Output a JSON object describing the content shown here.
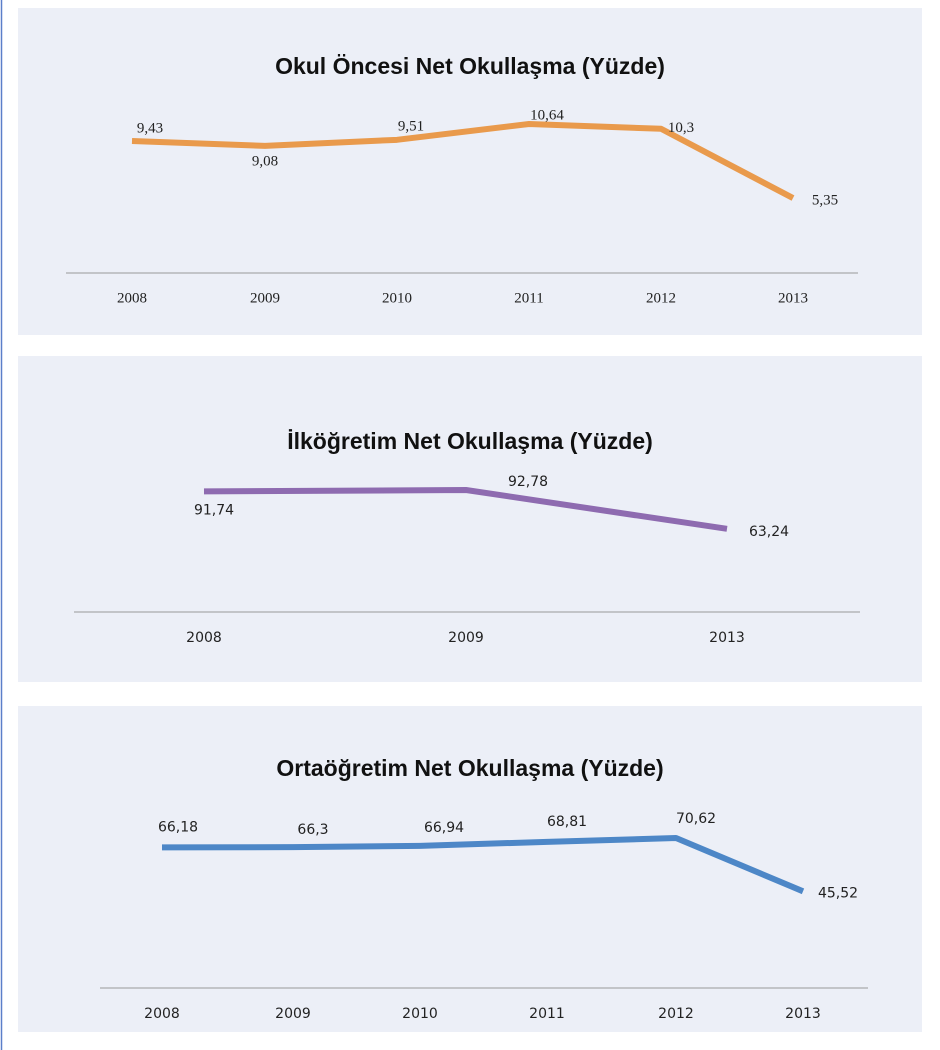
{
  "chart_data": [
    {
      "type": "line",
      "title": "Okul Öncesi Net Okullaşma (Yüzde)",
      "categories": [
        "2008",
        "2009",
        "2010",
        "2011",
        "2012",
        "2013"
      ],
      "values": [
        9.43,
        9.08,
        9.51,
        10.64,
        10.3,
        5.35
      ],
      "value_labels": [
        "9,43",
        "9,08",
        "9,51",
        "10,64",
        "10,3",
        "5,35"
      ],
      "color": "#e99a4c"
    },
    {
      "type": "line",
      "title": "İlköğretim Net Okullaşma (Yüzde)",
      "categories": [
        "2008",
        "2009",
        "2013"
      ],
      "values": [
        91.74,
        92.78,
        63.24
      ],
      "value_labels": [
        "91,74",
        "92,78",
        "63,24"
      ],
      "color": "#8e6bb0"
    },
    {
      "type": "line",
      "title": "Ortaöğretim Net Okullaşma (Yüzde)",
      "categories": [
        "2008",
        "2009",
        "2010",
        "2011",
        "2012",
        "2013"
      ],
      "values": [
        66.18,
        66.3,
        66.94,
        68.81,
        70.62,
        45.52
      ],
      "value_labels": [
        "66,18",
        "66,3",
        "66,94",
        "68,81",
        "70,62",
        "45,52"
      ],
      "color": "#4d87c7"
    }
  ]
}
